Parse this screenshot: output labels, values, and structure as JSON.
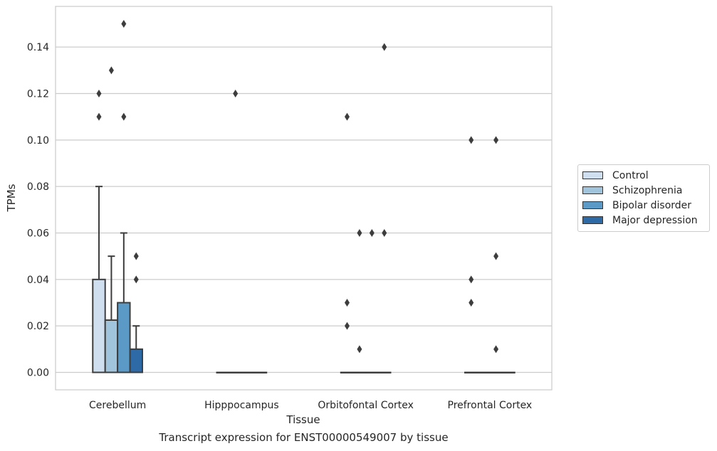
{
  "chart_data": {
    "type": "box",
    "xlabel": "Tissue",
    "ylabel": "TPMs",
    "caption": "Transcript expression for ENST00000549007 by tissue",
    "ylim": [
      -0.0075,
      0.1575
    ],
    "yticks": [
      "0.00",
      "0.02",
      "0.04",
      "0.06",
      "0.08",
      "0.10",
      "0.12",
      "0.14"
    ],
    "ytick_values": [
      0,
      0.02,
      0.04,
      0.06,
      0.08,
      0.1,
      0.12,
      0.14
    ],
    "grid": "horizontal",
    "legend_position": "right",
    "categories": [
      "Cerebellum",
      "Hipppocampus",
      "Orbitofontal Cortex",
      "Prefrontal Cortex"
    ],
    "series": [
      {
        "name": "Control",
        "color": "#d0dfef",
        "boxes": [
          {
            "q1": 0,
            "median": 0,
            "q3": 0.04,
            "whisker_low": 0,
            "whisker_high": 0.08,
            "outliers": [
              0.11,
              0.12
            ]
          },
          {
            "q1": 0,
            "median": 0,
            "q3": 0,
            "whisker_low": 0,
            "whisker_high": 0,
            "outliers": []
          },
          {
            "q1": 0,
            "median": 0,
            "q3": 0,
            "whisker_low": 0,
            "whisker_high": 0,
            "outliers": [
              0.02,
              0.03,
              0.11
            ]
          },
          {
            "q1": 0,
            "median": 0,
            "q3": 0,
            "whisker_low": 0,
            "whisker_high": 0,
            "outliers": [
              0.03,
              0.04,
              0.1
            ]
          }
        ]
      },
      {
        "name": "Schizophrenia",
        "color": "#9fc4dc",
        "boxes": [
          {
            "q1": 0,
            "median": 0,
            "q3": 0.0225,
            "whisker_low": 0,
            "whisker_high": 0.05,
            "outliers": [
              0.13
            ]
          },
          {
            "q1": 0,
            "median": 0,
            "q3": 0,
            "whisker_low": 0,
            "whisker_high": 0,
            "outliers": [
              0.12
            ]
          },
          {
            "q1": 0,
            "median": 0,
            "q3": 0,
            "whisker_low": 0,
            "whisker_high": 0,
            "outliers": [
              0.01,
              0.06
            ]
          },
          {
            "q1": 0,
            "median": 0,
            "q3": 0,
            "whisker_low": 0,
            "whisker_high": 0,
            "outliers": []
          }
        ]
      },
      {
        "name": "Bipolar disorder",
        "color": "#5b9ac6",
        "boxes": [
          {
            "q1": 0,
            "median": 0,
            "q3": 0.03,
            "whisker_low": 0,
            "whisker_high": 0.06,
            "outliers": [
              0.11,
              0.15
            ]
          },
          {
            "q1": 0,
            "median": 0,
            "q3": 0,
            "whisker_low": 0,
            "whisker_high": 0,
            "outliers": []
          },
          {
            "q1": 0,
            "median": 0,
            "q3": 0,
            "whisker_low": 0,
            "whisker_high": 0,
            "outliers": [
              0.06
            ]
          },
          {
            "q1": 0,
            "median": 0,
            "q3": 0,
            "whisker_low": 0,
            "whisker_high": 0,
            "outliers": [
              0.01,
              0.05,
              0.1
            ]
          }
        ]
      },
      {
        "name": "Major depression",
        "color": "#2e6aa6",
        "boxes": [
          {
            "q1": 0,
            "median": 0,
            "q3": 0.01,
            "whisker_low": 0,
            "whisker_high": 0.02,
            "outliers": [
              0.04,
              0.05
            ]
          },
          {
            "q1": 0,
            "median": 0,
            "q3": 0,
            "whisker_low": 0,
            "whisker_high": 0,
            "outliers": []
          },
          {
            "q1": 0,
            "median": 0,
            "q3": 0,
            "whisker_low": 0,
            "whisker_high": 0,
            "outliers": [
              0.06,
              0.14
            ]
          },
          {
            "q1": 0,
            "median": 0,
            "q3": 0,
            "whisker_low": 0,
            "whisker_high": 0,
            "outliers": []
          }
        ]
      }
    ]
  }
}
